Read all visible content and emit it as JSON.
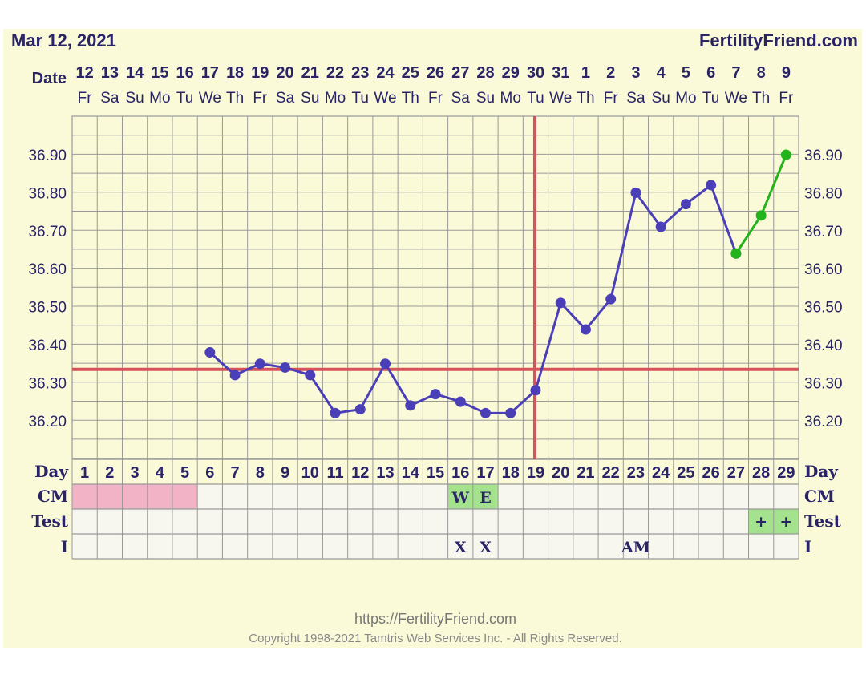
{
  "header": {
    "date": "Mar 12, 2021",
    "site": "FertilityFriend.com"
  },
  "labels": {
    "date_row": "Date",
    "day_row": "Day",
    "cm_row": "CM",
    "test_row": "Test",
    "i_row": "I"
  },
  "colors": {
    "background": "#fafad9",
    "grid": "#999999",
    "temp_line": "#4b3fb8",
    "temp_line_recent": "#22b41a",
    "coverline": "#d5545c",
    "ovulation_line": "#d5545c",
    "menstruation": "#f2b3c6",
    "cm_test_highlight": "#a4e28d"
  },
  "chart_data": {
    "type": "line",
    "y_tick_labels": [
      "36.90",
      "36.80",
      "36.70",
      "36.60",
      "36.50",
      "36.40",
      "36.30",
      "36.20"
    ],
    "ylim": [
      36.11,
      36.99
    ],
    "cycle_days": [
      1,
      2,
      3,
      4,
      5,
      6,
      7,
      8,
      9,
      10,
      11,
      12,
      13,
      14,
      15,
      16,
      17,
      18,
      19,
      20,
      21,
      22,
      23,
      24,
      25,
      26,
      27,
      28,
      29
    ],
    "dates": [
      "12",
      "13",
      "14",
      "15",
      "16",
      "17",
      "18",
      "19",
      "20",
      "21",
      "22",
      "23",
      "24",
      "25",
      "26",
      "27",
      "28",
      "29",
      "30",
      "31",
      "1",
      "2",
      "3",
      "4",
      "5",
      "6",
      "7",
      "8",
      "9"
    ],
    "weekdays": [
      "Fr",
      "Sa",
      "Su",
      "Mo",
      "Tu",
      "We",
      "Th",
      "Fr",
      "Sa",
      "Su",
      "Mo",
      "Tu",
      "We",
      "Th",
      "Fr",
      "Sa",
      "Su",
      "Mo",
      "Tu",
      "We",
      "Th",
      "Fr",
      "Sa",
      "Su",
      "Mo",
      "Tu",
      "We",
      "Th",
      "Fr"
    ],
    "series": [
      {
        "values": [
          null,
          null,
          null,
          null,
          null,
          36.38,
          36.32,
          36.35,
          36.34,
          36.32,
          36.22,
          36.23,
          36.35,
          36.24,
          36.27,
          36.25,
          36.22,
          36.22,
          36.28,
          36.51,
          36.44,
          36.52,
          36.8,
          36.71,
          36.77,
          36.82,
          36.64,
          null,
          null
        ]
      },
      {
        "values": [
          null,
          null,
          null,
          null,
          null,
          null,
          null,
          null,
          null,
          null,
          null,
          null,
          null,
          null,
          null,
          null,
          null,
          null,
          null,
          null,
          null,
          null,
          null,
          null,
          null,
          null,
          36.64,
          36.74,
          36.9
        ]
      }
    ],
    "coverline": 36.335,
    "ovulation_day": 19,
    "menstruation_days": [
      1,
      2,
      3,
      4,
      5
    ],
    "cm": [
      {
        "day": 16,
        "label": "W"
      },
      {
        "day": 17,
        "label": "E"
      }
    ],
    "test": [
      {
        "day": 28,
        "label": "+"
      },
      {
        "day": 29,
        "label": "+"
      }
    ],
    "intercourse": [
      {
        "day": 16,
        "label": "X"
      },
      {
        "day": 17,
        "label": "X"
      },
      {
        "day": 23,
        "label": "AM"
      }
    ],
    "grid": true
  },
  "footer": {
    "url": "https://FertilityFriend.com",
    "copyright": "Copyright 1998-2021 Tamtris Web Services Inc. - All Rights Reserved."
  }
}
